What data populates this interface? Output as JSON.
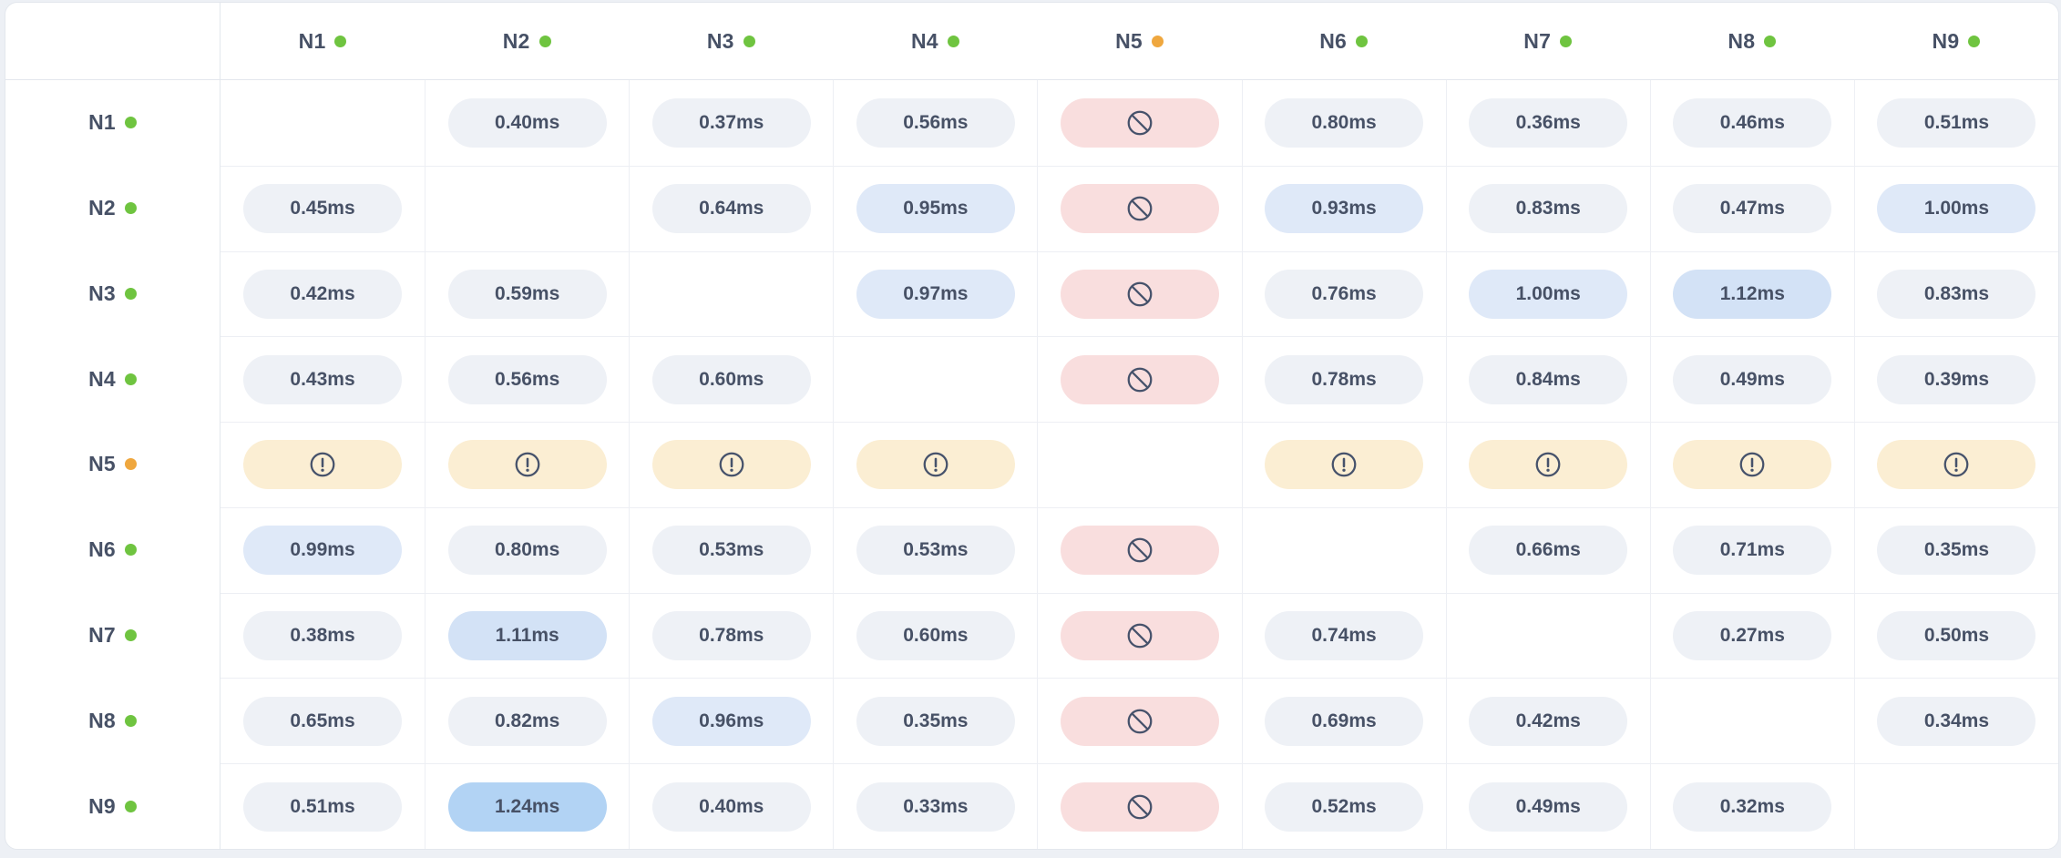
{
  "colors": {
    "page_bg": "#edf0f5",
    "card_bg": "#ffffff",
    "line_strong": "#e3e7ed",
    "line_light": "#edeff4",
    "text_primary": "#475166",
    "status_online": "#6fc440",
    "status_warning": "#efa73e",
    "pill_default": "#eef1f6",
    "pill_blue_1": "#dfe9f8",
    "pill_blue_2": "#d3e2f6",
    "pill_blue_3": "#b2d3f4",
    "pill_blocked": "#f9dede",
    "pill_warning": "#fbeed3",
    "icon_stroke": "#46526b"
  },
  "icons": {
    "blocked": "prohibited-icon",
    "warning": "alert-circle-icon",
    "status": "status-dot-icon"
  },
  "columns": [
    {
      "label": "N1",
      "status": "online"
    },
    {
      "label": "N2",
      "status": "online"
    },
    {
      "label": "N3",
      "status": "online"
    },
    {
      "label": "N4",
      "status": "online"
    },
    {
      "label": "N5",
      "status": "warning"
    },
    {
      "label": "N6",
      "status": "online"
    },
    {
      "label": "N7",
      "status": "online"
    },
    {
      "label": "N8",
      "status": "online"
    },
    {
      "label": "N9",
      "status": "online"
    }
  ],
  "rows": [
    {
      "label": "N1",
      "status": "online",
      "cells": [
        {
          "kind": "self"
        },
        {
          "kind": "latency",
          "value": "0.40ms",
          "tone": "default"
        },
        {
          "kind": "latency",
          "value": "0.37ms",
          "tone": "default"
        },
        {
          "kind": "latency",
          "value": "0.56ms",
          "tone": "default"
        },
        {
          "kind": "blocked"
        },
        {
          "kind": "latency",
          "value": "0.80ms",
          "tone": "default"
        },
        {
          "kind": "latency",
          "value": "0.36ms",
          "tone": "default"
        },
        {
          "kind": "latency",
          "value": "0.46ms",
          "tone": "default"
        },
        {
          "kind": "latency",
          "value": "0.51ms",
          "tone": "default"
        }
      ]
    },
    {
      "label": "N2",
      "status": "online",
      "cells": [
        {
          "kind": "latency",
          "value": "0.45ms",
          "tone": "default"
        },
        {
          "kind": "self"
        },
        {
          "kind": "latency",
          "value": "0.64ms",
          "tone": "default"
        },
        {
          "kind": "latency",
          "value": "0.95ms",
          "tone": "blue-1"
        },
        {
          "kind": "blocked"
        },
        {
          "kind": "latency",
          "value": "0.93ms",
          "tone": "blue-1"
        },
        {
          "kind": "latency",
          "value": "0.83ms",
          "tone": "default"
        },
        {
          "kind": "latency",
          "value": "0.47ms",
          "tone": "default"
        },
        {
          "kind": "latency",
          "value": "1.00ms",
          "tone": "blue-1"
        }
      ]
    },
    {
      "label": "N3",
      "status": "online",
      "cells": [
        {
          "kind": "latency",
          "value": "0.42ms",
          "tone": "default"
        },
        {
          "kind": "latency",
          "value": "0.59ms",
          "tone": "default"
        },
        {
          "kind": "self"
        },
        {
          "kind": "latency",
          "value": "0.97ms",
          "tone": "blue-1"
        },
        {
          "kind": "blocked"
        },
        {
          "kind": "latency",
          "value": "0.76ms",
          "tone": "default"
        },
        {
          "kind": "latency",
          "value": "1.00ms",
          "tone": "blue-1"
        },
        {
          "kind": "latency",
          "value": "1.12ms",
          "tone": "blue-2"
        },
        {
          "kind": "latency",
          "value": "0.83ms",
          "tone": "default"
        }
      ]
    },
    {
      "label": "N4",
      "status": "online",
      "cells": [
        {
          "kind": "latency",
          "value": "0.43ms",
          "tone": "default"
        },
        {
          "kind": "latency",
          "value": "0.56ms",
          "tone": "default"
        },
        {
          "kind": "latency",
          "value": "0.60ms",
          "tone": "default"
        },
        {
          "kind": "self"
        },
        {
          "kind": "blocked"
        },
        {
          "kind": "latency",
          "value": "0.78ms",
          "tone": "default"
        },
        {
          "kind": "latency",
          "value": "0.84ms",
          "tone": "default"
        },
        {
          "kind": "latency",
          "value": "0.49ms",
          "tone": "default"
        },
        {
          "kind": "latency",
          "value": "0.39ms",
          "tone": "default"
        }
      ]
    },
    {
      "label": "N5",
      "status": "warning",
      "cells": [
        {
          "kind": "warning"
        },
        {
          "kind": "warning"
        },
        {
          "kind": "warning"
        },
        {
          "kind": "warning"
        },
        {
          "kind": "self"
        },
        {
          "kind": "warning"
        },
        {
          "kind": "warning"
        },
        {
          "kind": "warning"
        },
        {
          "kind": "warning"
        }
      ]
    },
    {
      "label": "N6",
      "status": "online",
      "cells": [
        {
          "kind": "latency",
          "value": "0.99ms",
          "tone": "blue-1"
        },
        {
          "kind": "latency",
          "value": "0.80ms",
          "tone": "default"
        },
        {
          "kind": "latency",
          "value": "0.53ms",
          "tone": "default"
        },
        {
          "kind": "latency",
          "value": "0.53ms",
          "tone": "default"
        },
        {
          "kind": "blocked"
        },
        {
          "kind": "self"
        },
        {
          "kind": "latency",
          "value": "0.66ms",
          "tone": "default"
        },
        {
          "kind": "latency",
          "value": "0.71ms",
          "tone": "default"
        },
        {
          "kind": "latency",
          "value": "0.35ms",
          "tone": "default"
        }
      ]
    },
    {
      "label": "N7",
      "status": "online",
      "cells": [
        {
          "kind": "latency",
          "value": "0.38ms",
          "tone": "default"
        },
        {
          "kind": "latency",
          "value": "1.11ms",
          "tone": "blue-2"
        },
        {
          "kind": "latency",
          "value": "0.78ms",
          "tone": "default"
        },
        {
          "kind": "latency",
          "value": "0.60ms",
          "tone": "default"
        },
        {
          "kind": "blocked"
        },
        {
          "kind": "latency",
          "value": "0.74ms",
          "tone": "default"
        },
        {
          "kind": "self"
        },
        {
          "kind": "latency",
          "value": "0.27ms",
          "tone": "default"
        },
        {
          "kind": "latency",
          "value": "0.50ms",
          "tone": "default"
        }
      ]
    },
    {
      "label": "N8",
      "status": "online",
      "cells": [
        {
          "kind": "latency",
          "value": "0.65ms",
          "tone": "default"
        },
        {
          "kind": "latency",
          "value": "0.82ms",
          "tone": "default"
        },
        {
          "kind": "latency",
          "value": "0.96ms",
          "tone": "blue-1"
        },
        {
          "kind": "latency",
          "value": "0.35ms",
          "tone": "default"
        },
        {
          "kind": "blocked"
        },
        {
          "kind": "latency",
          "value": "0.69ms",
          "tone": "default"
        },
        {
          "kind": "latency",
          "value": "0.42ms",
          "tone": "default"
        },
        {
          "kind": "self"
        },
        {
          "kind": "latency",
          "value": "0.34ms",
          "tone": "default"
        }
      ]
    },
    {
      "label": "N9",
      "status": "online",
      "cells": [
        {
          "kind": "latency",
          "value": "0.51ms",
          "tone": "default"
        },
        {
          "kind": "latency",
          "value": "1.24ms",
          "tone": "blue-3"
        },
        {
          "kind": "latency",
          "value": "0.40ms",
          "tone": "default"
        },
        {
          "kind": "latency",
          "value": "0.33ms",
          "tone": "default"
        },
        {
          "kind": "blocked"
        },
        {
          "kind": "latency",
          "value": "0.52ms",
          "tone": "default"
        },
        {
          "kind": "latency",
          "value": "0.49ms",
          "tone": "default"
        },
        {
          "kind": "latency",
          "value": "0.32ms",
          "tone": "default"
        },
        {
          "kind": "self"
        }
      ]
    }
  ]
}
